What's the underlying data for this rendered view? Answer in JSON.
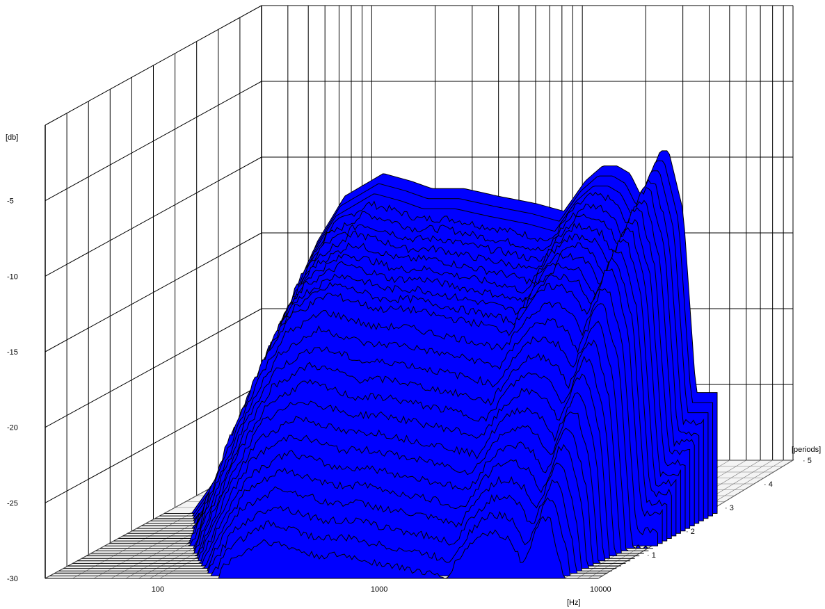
{
  "chart_data": {
    "type": "waterfall-3d",
    "xlabel": "[Hz]",
    "ylabel": "[db]",
    "zlabel": "[periods]",
    "x_scale": "log",
    "xlim": [
      30,
      10000
    ],
    "ylim": [
      -30,
      0
    ],
    "zlim": [
      0,
      5
    ],
    "x_ticks": [
      "100",
      "1000",
      "10000"
    ],
    "y_ticks": [
      "-5",
      "-10",
      "-15",
      "-20",
      "-25",
      "-30"
    ],
    "z_ticks": [
      "1",
      "2",
      "3",
      "4",
      "5"
    ],
    "grid": true,
    "fill_color": "#0000ff",
    "frequency_hz": [
      40,
      50,
      60,
      80,
      100,
      150,
      200,
      300,
      400,
      500,
      700,
      1000,
      1500,
      2000,
      2500,
      3000,
      3500,
      4000,
      4500,
      5000,
      5500,
      6000,
      7000,
      8000
    ],
    "peak_response_db": [
      -30,
      -28,
      -26,
      -22,
      -18,
      -12,
      -9,
      -7.5,
      -8,
      -8.5,
      -8.5,
      -9,
      -9.5,
      -10,
      -8,
      -7,
      -7,
      -7.5,
      -9,
      -7.5,
      -6,
      -6,
      -10,
      -22
    ],
    "slice_offsets_db": [
      0,
      0.5,
      1,
      1.5,
      2,
      2.5,
      3,
      3.5,
      4,
      4.5,
      5,
      5.5,
      6,
      7,
      8,
      9,
      10,
      11,
      12,
      13,
      14,
      15,
      16,
      17,
      18,
      19,
      20
    ]
  }
}
